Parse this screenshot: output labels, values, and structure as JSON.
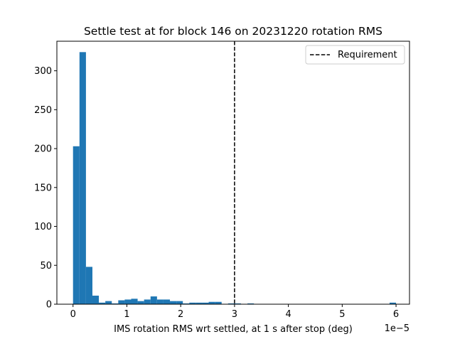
{
  "chart_data": {
    "type": "bar",
    "title": "Settle test at for block 146 on 20231220 rotation RMS",
    "xlabel": "IMS rotation RMS wrt settled, at 1 s after stop (deg)",
    "ylabel": "",
    "x_offset_text": "1e−5",
    "x_scale_factor": 1e-05,
    "xlim": [
      -0.3,
      6.25
    ],
    "ylim": [
      0,
      338
    ],
    "xticks": [
      0,
      1,
      2,
      3,
      4,
      5,
      6
    ],
    "xtick_labels": [
      "0",
      "1",
      "2",
      "3",
      "4",
      "5",
      "6"
    ],
    "yticks": [
      0,
      50,
      100,
      150,
      200,
      250,
      300
    ],
    "ytick_labels": [
      "0",
      "50",
      "100",
      "150",
      "200",
      "250",
      "300"
    ],
    "bin_edges": [
      0.0,
      0.12,
      0.24,
      0.36,
      0.48,
      0.6,
      0.72,
      0.84,
      0.96,
      1.08,
      1.2,
      1.32,
      1.44,
      1.56,
      1.68,
      1.8,
      1.92,
      2.04,
      2.16,
      2.28,
      2.4,
      2.52,
      2.64,
      2.76,
      2.88,
      3.0,
      3.12,
      3.24,
      3.36,
      3.48,
      3.6,
      3.72,
      3.84,
      3.96,
      4.08,
      4.2,
      4.32,
      4.44,
      4.56,
      4.68,
      4.8,
      4.92,
      5.04,
      5.16,
      5.28,
      5.4,
      5.52,
      5.64,
      5.76,
      5.88,
      6.0
    ],
    "counts": [
      203,
      324,
      48,
      11,
      2,
      4,
      1,
      5,
      6,
      7,
      4,
      6,
      10,
      6,
      6,
      4,
      4,
      1,
      2,
      2,
      2,
      3,
      3,
      0,
      1,
      1,
      0,
      1,
      0,
      0,
      0,
      0,
      0,
      0,
      0,
      0,
      0,
      0,
      0,
      0,
      0,
      0,
      0,
      0,
      0,
      0,
      0,
      0,
      0,
      2
    ],
    "bar_color": "#1f77b4",
    "requirement_line": {
      "x": 3.0,
      "label": "Requirement",
      "style": "dashed",
      "color": "#000000"
    },
    "legend_position": "upper right",
    "grid": false
  }
}
